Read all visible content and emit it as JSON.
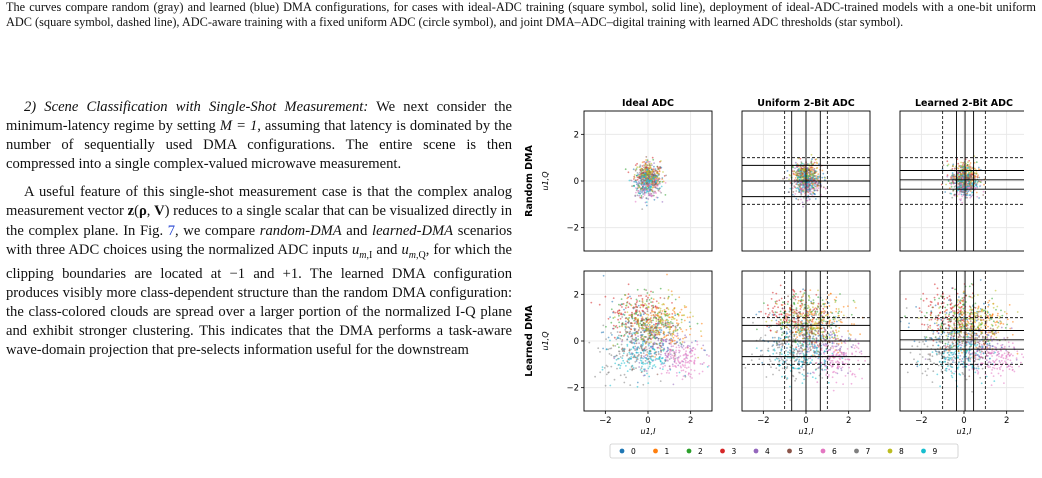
{
  "caption": {
    "text": "The curves compare random (gray) and learned (blue) DMA configurations, for cases with ideal-ADC training (square symbol, solid line), deployment of ideal-ADC-trained models with a one-bit uniform ADC (square symbol, dashed line), ADC-aware training with a fixed uniform ADC (circle symbol), and joint DMA–ADC–digital training with learned ADC thresholds (star symbol)."
  },
  "section": {
    "heading": "2) Scene Classification with Single-Shot Measurement:",
    "p1_a": "We next consider the minimum-latency regime by setting ",
    "p1_eq": "M = 1",
    "p1_b": ", assuming that latency is dominated by the number of sequentially used DMA configurations. The entire scene is then compressed into a single complex-valued microwave measurement.",
    "p2_a": "A useful feature of this single-shot measurement case is that the complex analog measurement vector ",
    "p2_b": " reduces to a single scalar that can be visualized directly in the complex plane. In Fig. ",
    "p2_fig": "7",
    "p2_c": ", we compare ",
    "p2_rand": "random-DMA",
    "p2_d": " and ",
    "p2_learn": "learned-DMA",
    "p2_e": " scenarios with three ADC choices using the normalized ADC inputs ",
    "p2_f": " and ",
    "p2_g": ", for which the clipping boundaries are located at −1 and +1. The learned DMA configuration produces visibly more class-dependent structure than the random DMA configuration: the class-colored clouds are spread over a larger portion of the normalized I-Q plane and exhibit stronger clustering. This indicates that the DMA performs a task-aware wave-domain projection that pre-selects information useful for the downstream"
  },
  "figure": {
    "col_titles": [
      "Ideal ADC",
      "Uniform 2-Bit ADC",
      "Learned 2-Bit ADC"
    ],
    "row_titles": [
      "Random DMA",
      "Learned DMA"
    ],
    "ylabel": "u1,Q",
    "xlabel": "u1,I",
    "legend": [
      "0",
      "1",
      "2",
      "3",
      "4",
      "5",
      "6",
      "7",
      "8",
      "9"
    ]
  },
  "chart_data": {
    "type": "scatter",
    "xlim": [
      -3,
      3
    ],
    "ylim": [
      -3,
      3
    ],
    "xticks": [
      -2,
      0,
      2
    ],
    "yticks": [
      -2,
      0,
      2
    ],
    "grid": true,
    "legend_position": "bottom",
    "class_colors": [
      "#1f77b4",
      "#ff7f0e",
      "#2ca02c",
      "#d62728",
      "#9467bd",
      "#8c564b",
      "#e377c2",
      "#7f7f7f",
      "#bcbd22",
      "#17becf"
    ],
    "panels": [
      {
        "row": "Random DMA",
        "col": "Ideal ADC",
        "clusters": [
          {
            "cls": 0,
            "cx": 0.05,
            "cy": 0.0,
            "sx": 0.35,
            "sy": 0.4
          },
          {
            "cls": 1,
            "cx": 0.1,
            "cy": 0.15,
            "sx": 0.3,
            "sy": 0.3
          },
          {
            "cls": 2,
            "cx": 0.0,
            "cy": 0.1,
            "sx": 0.3,
            "sy": 0.35
          },
          {
            "cls": 3,
            "cx": -0.05,
            "cy": 0.3,
            "sx": 0.3,
            "sy": 0.3
          },
          {
            "cls": 4,
            "cx": 0.0,
            "cy": 0.0,
            "sx": 0.3,
            "sy": 0.35
          },
          {
            "cls": 5,
            "cx": 0.05,
            "cy": 0.05,
            "sx": 0.3,
            "sy": 0.3
          },
          {
            "cls": 6,
            "cx": 0.1,
            "cy": -0.25,
            "sx": 0.3,
            "sy": 0.25
          },
          {
            "cls": 7,
            "cx": -0.1,
            "cy": 0.0,
            "sx": 0.3,
            "sy": 0.3
          },
          {
            "cls": 8,
            "cx": 0.0,
            "cy": 0.25,
            "sx": 0.3,
            "sy": 0.3
          },
          {
            "cls": 9,
            "cx": 0.0,
            "cy": -0.05,
            "sx": 0.3,
            "sy": 0.3
          }
        ]
      },
      {
        "row": "Random DMA",
        "col": "Uniform 2-Bit ADC",
        "clusters": [
          {
            "cls": 0,
            "cx": 0.05,
            "cy": 0.0,
            "sx": 0.35,
            "sy": 0.4
          },
          {
            "cls": 1,
            "cx": 0.1,
            "cy": 0.15,
            "sx": 0.3,
            "sy": 0.3
          },
          {
            "cls": 2,
            "cx": 0.0,
            "cy": 0.1,
            "sx": 0.3,
            "sy": 0.35
          },
          {
            "cls": 3,
            "cx": -0.05,
            "cy": 0.3,
            "sx": 0.3,
            "sy": 0.3
          },
          {
            "cls": 4,
            "cx": 0.0,
            "cy": 0.0,
            "sx": 0.3,
            "sy": 0.35
          },
          {
            "cls": 5,
            "cx": 0.05,
            "cy": 0.05,
            "sx": 0.3,
            "sy": 0.3
          },
          {
            "cls": 6,
            "cx": 0.1,
            "cy": -0.25,
            "sx": 0.3,
            "sy": 0.25
          },
          {
            "cls": 7,
            "cx": -0.1,
            "cy": 0.0,
            "sx": 0.3,
            "sy": 0.3
          },
          {
            "cls": 8,
            "cx": 0.0,
            "cy": 0.25,
            "sx": 0.3,
            "sy": 0.3
          },
          {
            "cls": 9,
            "cx": 0.0,
            "cy": -0.05,
            "sx": 0.3,
            "sy": 0.3
          }
        ]
      },
      {
        "row": "Random DMA",
        "col": "Learned 2-Bit ADC",
        "clusters": [
          {
            "cls": 0,
            "cx": 0.05,
            "cy": 0.0,
            "sx": 0.35,
            "sy": 0.4
          },
          {
            "cls": 1,
            "cx": 0.1,
            "cy": 0.15,
            "sx": 0.3,
            "sy": 0.3
          },
          {
            "cls": 2,
            "cx": 0.0,
            "cy": 0.1,
            "sx": 0.3,
            "sy": 0.35
          },
          {
            "cls": 3,
            "cx": -0.05,
            "cy": 0.3,
            "sx": 0.3,
            "sy": 0.3
          },
          {
            "cls": 4,
            "cx": 0.0,
            "cy": 0.0,
            "sx": 0.3,
            "sy": 0.35
          },
          {
            "cls": 5,
            "cx": 0.05,
            "cy": 0.05,
            "sx": 0.3,
            "sy": 0.3
          },
          {
            "cls": 6,
            "cx": 0.1,
            "cy": -0.25,
            "sx": 0.3,
            "sy": 0.25
          },
          {
            "cls": 7,
            "cx": -0.1,
            "cy": 0.0,
            "sx": 0.3,
            "sy": 0.3
          },
          {
            "cls": 8,
            "cx": 0.0,
            "cy": 0.25,
            "sx": 0.3,
            "sy": 0.3
          },
          {
            "cls": 9,
            "cx": 0.0,
            "cy": -0.05,
            "sx": 0.3,
            "sy": 0.3
          }
        ]
      },
      {
        "row": "Learned DMA",
        "col": "Ideal ADC",
        "clusters": [
          {
            "cls": 0,
            "cx": -0.3,
            "cy": 0.3,
            "sx": 0.9,
            "sy": 0.7
          },
          {
            "cls": 1,
            "cx": 0.6,
            "cy": 0.7,
            "sx": 0.8,
            "sy": 0.6
          },
          {
            "cls": 2,
            "cx": 0.0,
            "cy": 0.9,
            "sx": 0.9,
            "sy": 0.6
          },
          {
            "cls": 3,
            "cx": -0.6,
            "cy": 1.2,
            "sx": 0.7,
            "sy": 0.5
          },
          {
            "cls": 4,
            "cx": 0.7,
            "cy": -0.3,
            "sx": 0.8,
            "sy": 0.5
          },
          {
            "cls": 5,
            "cx": 0.2,
            "cy": 0.2,
            "sx": 0.7,
            "sy": 0.6
          },
          {
            "cls": 6,
            "cx": 1.5,
            "cy": -0.8,
            "sx": 0.6,
            "sy": 0.4
          },
          {
            "cls": 7,
            "cx": -0.8,
            "cy": -0.5,
            "sx": 0.8,
            "sy": 0.6
          },
          {
            "cls": 8,
            "cx": 0.3,
            "cy": 0.8,
            "sx": 0.8,
            "sy": 0.5
          },
          {
            "cls": 9,
            "cx": -0.2,
            "cy": -0.7,
            "sx": 0.7,
            "sy": 0.45
          }
        ]
      },
      {
        "row": "Learned DMA",
        "col": "Uniform 2-Bit ADC",
        "clusters": [
          {
            "cls": 0,
            "cx": -0.3,
            "cy": 0.3,
            "sx": 0.9,
            "sy": 0.7
          },
          {
            "cls": 1,
            "cx": 0.6,
            "cy": 0.7,
            "sx": 0.8,
            "sy": 0.6
          },
          {
            "cls": 2,
            "cx": 0.0,
            "cy": 0.9,
            "sx": 0.9,
            "sy": 0.6
          },
          {
            "cls": 3,
            "cx": -0.6,
            "cy": 1.2,
            "sx": 0.7,
            "sy": 0.5
          },
          {
            "cls": 4,
            "cx": 0.7,
            "cy": -0.3,
            "sx": 0.8,
            "sy": 0.5
          },
          {
            "cls": 5,
            "cx": 0.2,
            "cy": 0.2,
            "sx": 0.7,
            "sy": 0.6
          },
          {
            "cls": 6,
            "cx": 1.5,
            "cy": -0.8,
            "sx": 0.6,
            "sy": 0.4
          },
          {
            "cls": 7,
            "cx": -0.8,
            "cy": -0.5,
            "sx": 0.8,
            "sy": 0.6
          },
          {
            "cls": 8,
            "cx": 0.3,
            "cy": 0.8,
            "sx": 0.8,
            "sy": 0.5
          },
          {
            "cls": 9,
            "cx": -0.2,
            "cy": -0.7,
            "sx": 0.7,
            "sy": 0.45
          }
        ]
      },
      {
        "row": "Learned DMA",
        "col": "Learned 2-Bit ADC",
        "clusters": [
          {
            "cls": 0,
            "cx": -0.3,
            "cy": 0.3,
            "sx": 0.9,
            "sy": 0.7
          },
          {
            "cls": 1,
            "cx": 0.6,
            "cy": 0.7,
            "sx": 0.8,
            "sy": 0.6
          },
          {
            "cls": 2,
            "cx": 0.0,
            "cy": 0.9,
            "sx": 0.9,
            "sy": 0.6
          },
          {
            "cls": 3,
            "cx": -0.6,
            "cy": 1.2,
            "sx": 0.7,
            "sy": 0.5
          },
          {
            "cls": 4,
            "cx": 0.7,
            "cy": -0.3,
            "sx": 0.8,
            "sy": 0.5
          },
          {
            "cls": 5,
            "cx": 0.2,
            "cy": 0.2,
            "sx": 0.7,
            "sy": 0.6
          },
          {
            "cls": 6,
            "cx": 1.5,
            "cy": -0.8,
            "sx": 0.6,
            "sy": 0.4
          },
          {
            "cls": 7,
            "cx": -0.8,
            "cy": -0.5,
            "sx": 0.8,
            "sy": 0.6
          },
          {
            "cls": 8,
            "cx": 0.3,
            "cy": 0.8,
            "sx": 0.8,
            "sy": 0.5
          },
          {
            "cls": 9,
            "cx": -0.2,
            "cy": -0.7,
            "sx": 0.7,
            "sy": 0.45
          }
        ]
      }
    ],
    "adc": {
      "Ideal ADC": {
        "solid": [],
        "dashed": []
      },
      "Uniform 2-Bit ADC": {
        "solid": [
          -0.67,
          0,
          0.67
        ],
        "dashed": [
          -1,
          1
        ]
      },
      "Learned 2-Bit ADC": {
        "solid": [
          -0.35,
          0.05,
          0.45
        ],
        "dashed": [
          -1,
          1
        ]
      }
    }
  }
}
